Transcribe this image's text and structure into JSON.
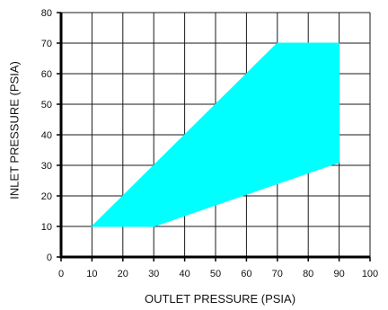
{
  "chart_data": {
    "type": "area",
    "title": "",
    "xlabel": "OUTLET PRESSURE (PSIA)",
    "ylabel": "INLET PRESSURE (PSIA)",
    "xlim": [
      0,
      100
    ],
    "ylim": [
      0,
      80
    ],
    "x_ticks": [
      "0",
      "10",
      "20",
      "30",
      "40",
      "50",
      "60",
      "70",
      "80",
      "90",
      "100"
    ],
    "y_ticks": [
      "0",
      "10",
      "20",
      "30",
      "40",
      "50",
      "60",
      "70",
      "80"
    ],
    "grid": true,
    "region": {
      "color": "#00FFFF",
      "points": [
        {
          "x": 10,
          "y": 10
        },
        {
          "x": 30,
          "y": 10
        },
        {
          "x": 90,
          "y": 31
        },
        {
          "x": 90,
          "y": 70
        },
        {
          "x": 70,
          "y": 70
        },
        {
          "x": 10,
          "y": 10
        }
      ]
    }
  }
}
